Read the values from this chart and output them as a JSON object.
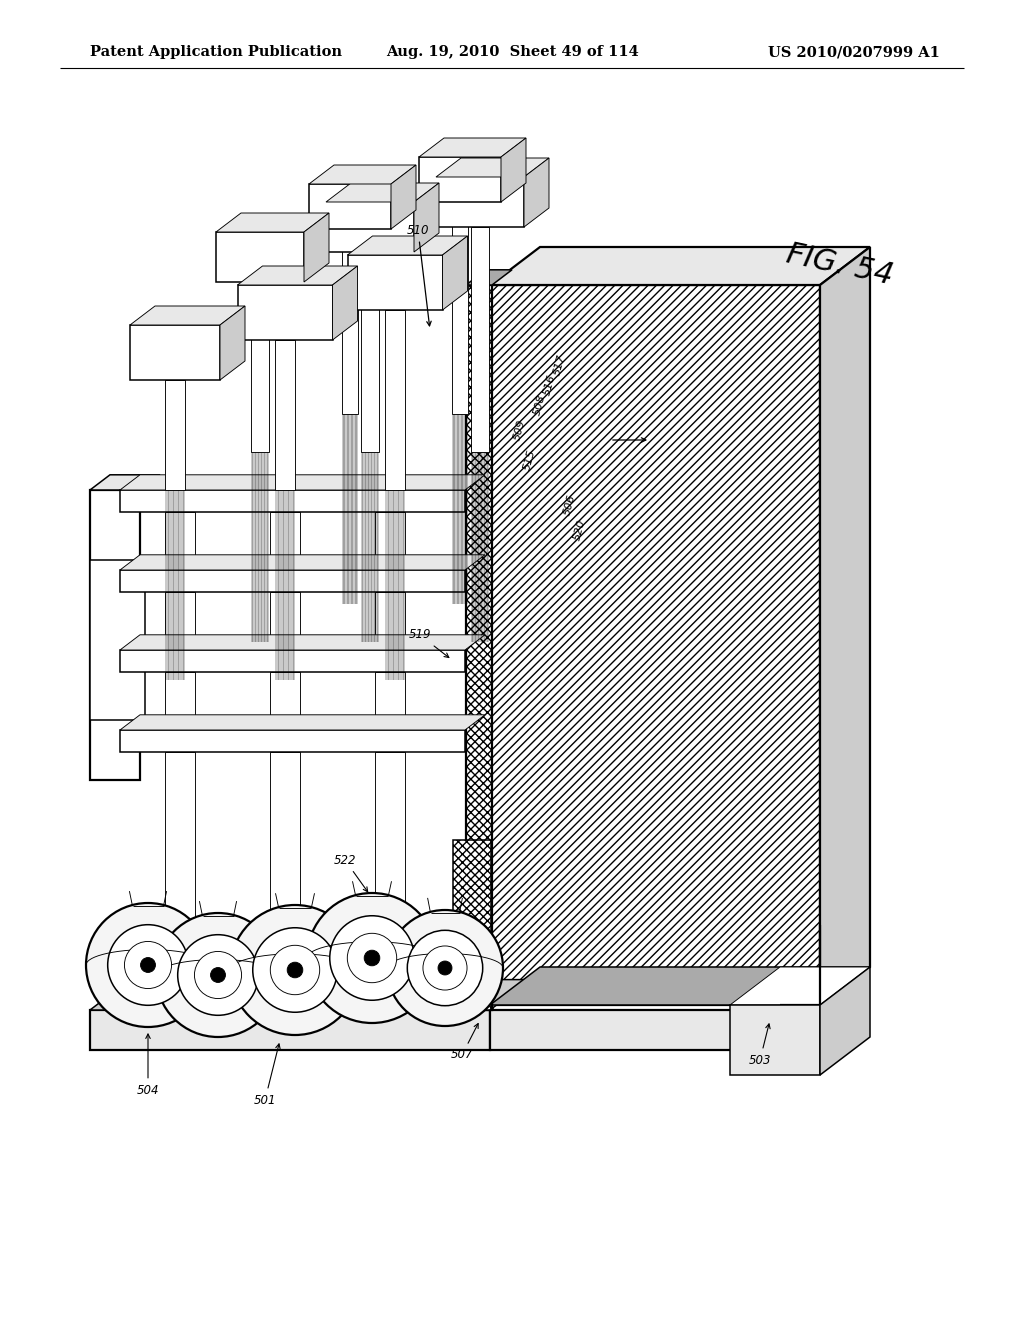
{
  "background_color": "#ffffff",
  "header_left": "Patent Application Publication",
  "header_mid": "Aug. 19, 2010  Sheet 49 of 114",
  "header_right": "US 2010/0207999 A1",
  "fig_label": "FIG. 54",
  "header_fontsize": 10.5,
  "fig_fontsize": 22
}
